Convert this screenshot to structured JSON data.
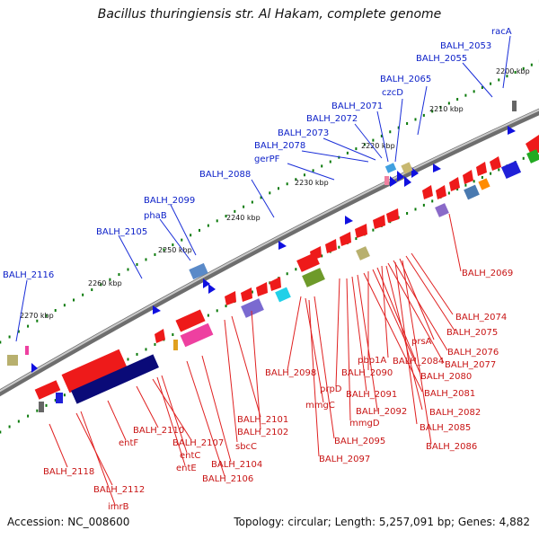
{
  "title": "Bacillus thuringiensis str. Al Hakam, complete genome",
  "footer": {
    "accession": "Accession: NC_008600",
    "topology": "Topology: circular; Length: 5,257,091 bp; Genes: 4,882"
  },
  "kbp_labels": [
    "2200 kbp",
    "2210 kbp",
    "2220 kbp",
    "2230 kbp",
    "2240 kbp",
    "2250 kbp",
    "2260 kbp",
    "2270 kbp"
  ],
  "top_labels": [
    "racA",
    "BALH_2053",
    "BALH_2055",
    "BALH_2065",
    "czcD",
    "BALH_2071",
    "BALH_2072",
    "BALH_2073",
    "BALH_2078",
    "gerPF",
    "BALH_2088",
    "BALH_2099",
    "phaB",
    "BALH_2105",
    "BALH_2116"
  ],
  "bottom_labels": [
    "BALH_2069",
    "BALH_2074",
    "BALH_2075",
    "prsA",
    "BALH_2076",
    "BALH_2077",
    "pbp1A",
    "BALH_2084",
    "BALH_2080",
    "BALH_2090",
    "BALH_2081",
    "prpD",
    "BALH_2091",
    "BALH_2098",
    "mmgC",
    "BALH_2092",
    "BALH_2082",
    "mmgD",
    "BALH_2085",
    "BALH_2101",
    "BALH_2102",
    "BALH_2095",
    "BALH_2086",
    "sbcC",
    "BALH_2097",
    "BALH_2110",
    "BALH_2107",
    "entF",
    "entC",
    "BALH_2104",
    "entE",
    "BALH_2106",
    "BALH_2118",
    "BALH_2112",
    "imrB"
  ],
  "colors": {
    "backbone": "#8a8a8a",
    "forward_gene": "#ee1a1a",
    "reverse_gene": "#1a1ae8",
    "gc_skew": "#0a7a0a",
    "navy_block": "#0a0a78",
    "blue_label": "#0a1ec8",
    "red_label": "#c81414"
  }
}
